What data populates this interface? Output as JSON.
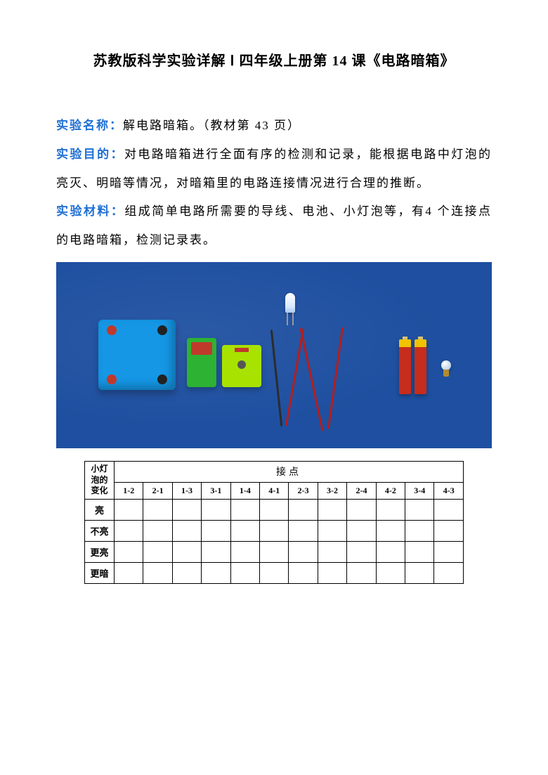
{
  "title": "苏教版科学实验详解 Ⅰ 四年级上册第 14 课《电路暗箱》",
  "sections": {
    "name": {
      "label": "实验名称：",
      "text": "解电路暗箱。（教材第 43 页）"
    },
    "purpose": {
      "label": "实验目的：",
      "text": "对电路暗箱进行全面有序的检测和记录，能根据电路中灯泡的亮灭、明暗等情况，对暗箱里的电路连接情况进行合理的推断。"
    },
    "materials": {
      "label": "实验材料：",
      "text": "组成简单电路所需要的导线、电池、小灯泡等，有4 个连接点的电路暗箱，检测记录表。"
    }
  },
  "illustration": {
    "background_color": "#1e4fa0",
    "items": [
      {
        "name": "blue-box",
        "color": "#1597e6",
        "posts": [
          "#c0392b",
          "#222222",
          "#c0392b",
          "#222222"
        ]
      },
      {
        "name": "green-holder-1",
        "color": "#2db234"
      },
      {
        "name": "green-holder-2",
        "color": "#a8e200"
      },
      {
        "name": "led"
      },
      {
        "name": "wire-red-1",
        "color": "#b21f1f"
      },
      {
        "name": "wire-red-2",
        "color": "#b21f1f"
      },
      {
        "name": "wire-red-3",
        "color": "#b21f1f"
      },
      {
        "name": "wire-black",
        "color": "#2c2c2c"
      },
      {
        "name": "battery-1"
      },
      {
        "name": "battery-2"
      },
      {
        "name": "small-bulb"
      }
    ]
  },
  "table": {
    "corner_label": "小灯泡的变化",
    "group_header": "接点",
    "columns": [
      "1-2",
      "2-1",
      "1-3",
      "3-1",
      "1-4",
      "4-1",
      "2-3",
      "3-2",
      "2-4",
      "4-2",
      "3-4",
      "4-3"
    ],
    "rows": [
      "亮",
      "不亮",
      "更亮",
      "更暗"
    ],
    "cells": [
      [
        "",
        "",
        "",
        "",
        "",
        "",
        "",
        "",
        "",
        "",
        "",
        ""
      ],
      [
        "",
        "",
        "",
        "",
        "",
        "",
        "",
        "",
        "",
        "",
        "",
        ""
      ],
      [
        "",
        "",
        "",
        "",
        "",
        "",
        "",
        "",
        "",
        "",
        "",
        ""
      ],
      [
        "",
        "",
        "",
        "",
        "",
        "",
        "",
        "",
        "",
        "",
        "",
        ""
      ]
    ],
    "border_color": "#000000",
    "font_size_header": 14,
    "font_size_body": 13
  },
  "colors": {
    "accent": "#1f6fd4",
    "text": "#000000",
    "page_bg": "#ffffff"
  }
}
